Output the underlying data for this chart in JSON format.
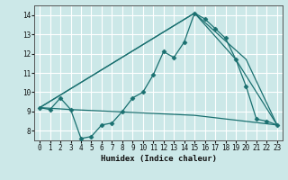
{
  "title": "",
  "xlabel": "Humidex (Indice chaleur)",
  "xlim": [
    -0.5,
    23.5
  ],
  "ylim": [
    7.5,
    14.5
  ],
  "yticks": [
    8,
    9,
    10,
    11,
    12,
    13,
    14
  ],
  "xticks": [
    0,
    1,
    2,
    3,
    4,
    5,
    6,
    7,
    8,
    9,
    10,
    11,
    12,
    13,
    14,
    15,
    16,
    17,
    18,
    19,
    20,
    21,
    22,
    23
  ],
  "bg_color": "#cce8e8",
  "grid_color": "#ffffff",
  "line_color": "#1a7070",
  "main_series": {
    "x": [
      0,
      1,
      2,
      3,
      4,
      5,
      6,
      7,
      8,
      9,
      10,
      11,
      12,
      13,
      14,
      15,
      16,
      17,
      18,
      19,
      20,
      21,
      22,
      23
    ],
    "y": [
      9.2,
      9.1,
      9.7,
      9.1,
      7.6,
      7.7,
      8.3,
      8.4,
      9.0,
      9.7,
      10.0,
      10.9,
      12.1,
      11.8,
      12.6,
      14.1,
      13.8,
      13.3,
      12.8,
      11.7,
      10.3,
      8.6,
      8.5,
      8.3
    ]
  },
  "envelope": [
    {
      "x": [
        0,
        15,
        20,
        23
      ],
      "y": [
        9.2,
        14.1,
        11.7,
        8.3
      ]
    },
    {
      "x": [
        0,
        15,
        19,
        23
      ],
      "y": [
        9.2,
        14.1,
        11.7,
        8.3
      ]
    },
    {
      "x": [
        0,
        3,
        15,
        23
      ],
      "y": [
        9.2,
        9.1,
        8.8,
        8.3
      ]
    }
  ]
}
